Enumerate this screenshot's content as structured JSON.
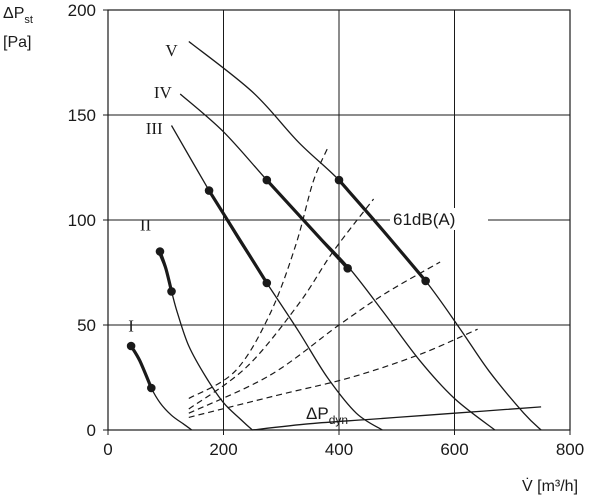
{
  "chart_data": {
    "type": "line",
    "title": "",
    "xlabel": "V̇ [m³/h]",
    "ylabel_main": "ΔP",
    "ylabel_sub": "st",
    "ylabel_unit": "[Pa]",
    "xlim": [
      0,
      800
    ],
    "ylim": [
      0,
      200
    ],
    "x_ticks": [
      0,
      200,
      400,
      600,
      800
    ],
    "y_ticks": [
      0,
      50,
      100,
      150,
      200
    ],
    "grid": true,
    "series": [
      {
        "name": "I",
        "style": "solid",
        "points": [
          [
            40,
            40
          ],
          [
            60,
            30
          ],
          [
            75,
            20
          ],
          [
            90,
            13
          ],
          [
            110,
            7
          ],
          [
            130,
            3
          ],
          [
            145,
            0
          ]
        ],
        "highlight": [
          [
            40,
            40
          ],
          [
            55,
            33
          ],
          [
            75,
            20
          ]
        ]
      },
      {
        "name": "II",
        "style": "solid",
        "points": [
          [
            85,
            86
          ],
          [
            100,
            76
          ],
          [
            110,
            66
          ],
          [
            120,
            56
          ],
          [
            140,
            40
          ],
          [
            170,
            25
          ],
          [
            200,
            13
          ],
          [
            230,
            5
          ],
          [
            250,
            0
          ]
        ],
        "highlight": [
          [
            90,
            85
          ],
          [
            100,
            77
          ],
          [
            110,
            66
          ]
        ]
      },
      {
        "name": "III",
        "style": "solid",
        "points": [
          [
            110,
            145
          ],
          [
            175,
            114
          ],
          [
            225,
            91
          ],
          [
            275,
            70
          ],
          [
            330,
            47
          ],
          [
            380,
            25
          ],
          [
            430,
            8
          ],
          [
            475,
            0
          ]
        ],
        "highlight": [
          [
            175,
            114
          ],
          [
            225,
            92
          ],
          [
            275,
            70
          ]
        ]
      },
      {
        "name": "IV",
        "style": "solid",
        "points": [
          [
            125,
            160
          ],
          [
            200,
            142
          ],
          [
            275,
            119
          ],
          [
            345,
            98
          ],
          [
            415,
            78
          ],
          [
            480,
            55
          ],
          [
            540,
            33
          ],
          [
            600,
            15
          ],
          [
            670,
            0
          ]
        ],
        "highlight": [
          [
            275,
            119
          ],
          [
            345,
            98
          ],
          [
            415,
            77
          ]
        ]
      },
      {
        "name": "V",
        "style": "solid",
        "points": [
          [
            140,
            185
          ],
          [
            250,
            161
          ],
          [
            330,
            137
          ],
          [
            400,
            119
          ],
          [
            470,
            97
          ],
          [
            550,
            71
          ],
          [
            610,
            48
          ],
          [
            660,
            28
          ],
          [
            720,
            8
          ],
          [
            750,
            0
          ]
        ],
        "highlight": [
          [
            400,
            119
          ],
          [
            470,
            97
          ],
          [
            550,
            71
          ]
        ]
      },
      {
        "name": "ΔPdyn",
        "style": "solid",
        "points": [
          [
            250,
            0
          ],
          [
            350,
            3
          ],
          [
            450,
            5
          ],
          [
            550,
            7
          ],
          [
            650,
            9
          ],
          [
            750,
            11
          ]
        ]
      },
      {
        "name": "",
        "style": "dashed",
        "points": [
          [
            140,
            15
          ],
          [
            220,
            28
          ],
          [
            280,
            55
          ],
          [
            325,
            88
          ],
          [
            355,
            118
          ],
          [
            380,
            134
          ]
        ]
      },
      {
        "name": "",
        "style": "dashed",
        "points": [
          [
            140,
            10
          ],
          [
            240,
            30
          ],
          [
            330,
            60
          ],
          [
            390,
            85
          ],
          [
            460,
            110
          ]
        ]
      },
      {
        "name": "",
        "style": "dashed",
        "points": [
          [
            140,
            8
          ],
          [
            280,
            26
          ],
          [
            400,
            50
          ],
          [
            480,
            65
          ],
          [
            575,
            80
          ]
        ]
      },
      {
        "name": "",
        "style": "dashed",
        "points": [
          [
            140,
            6
          ],
          [
            300,
            17
          ],
          [
            420,
            25
          ],
          [
            540,
            36
          ],
          [
            640,
            48
          ]
        ]
      }
    ],
    "markers": [
      [
        40,
        40
      ],
      [
        75,
        20
      ],
      [
        90,
        85
      ],
      [
        110,
        66
      ],
      [
        175,
        114
      ],
      [
        275,
        70
      ],
      [
        275,
        119
      ],
      [
        415,
        77
      ],
      [
        400,
        119
      ],
      [
        550,
        71
      ]
    ],
    "curve_labels": [
      {
        "text": "V",
        "x": 110,
        "y": 178
      },
      {
        "text": "IV",
        "x": 95,
        "y": 158
      },
      {
        "text": "III",
        "x": 80,
        "y": 141
      },
      {
        "text": "II",
        "x": 65,
        "y": 95
      },
      {
        "text": "I",
        "x": 40,
        "y": 47
      }
    ],
    "annotations": [
      {
        "main": "61dB(A)",
        "sub": "",
        "x": 493,
        "y": 100
      },
      {
        "main": "ΔP",
        "sub": "dyn",
        "x": 345,
        "y": 5
      }
    ]
  }
}
